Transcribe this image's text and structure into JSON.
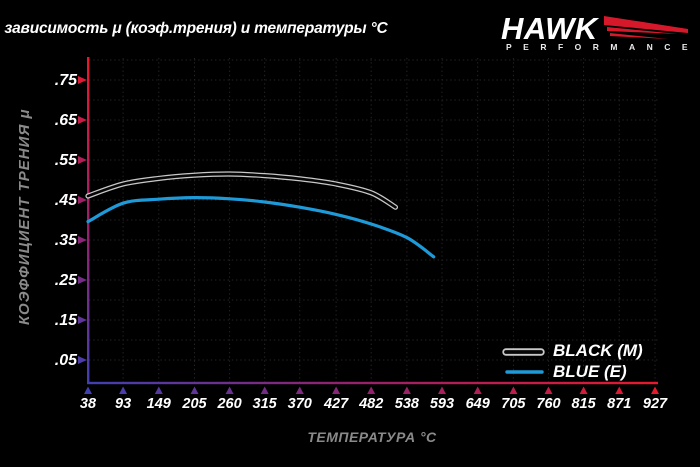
{
  "logo": {
    "brand": "HAWK",
    "sub": "PERFORMANCE"
  },
  "colors": {
    "background": "#000000",
    "title_text": "#ffffff",
    "axis_title_text": "#8a8a8a",
    "tick_text": "#ffffff",
    "grid": "#242424",
    "axis_gradient_red": "#e8192c",
    "axis_gradient_purple": "#93226e",
    "axis_gradient_blue": "#4040b2",
    "hawk_red": "#d6182b",
    "series_blue": "#1e9ad8",
    "series_black_outline": "#c8c8c8"
  },
  "chart_data": {
    "type": "line",
    "title": "зависимость μ (коэф.трения) и температуры °C",
    "xlabel": "ТЕМПЕРАТУРА °C",
    "ylabel": "КОЭФФИЦИЕНТ ТРЕНИЯ μ",
    "xlim": [
      38,
      927
    ],
    "ylim": [
      0,
      0.8
    ],
    "grid": "dotted",
    "x_ticks": [
      38,
      93,
      149,
      205,
      260,
      315,
      370,
      427,
      482,
      538,
      593,
      649,
      705,
      760,
      815,
      871,
      927
    ],
    "y_ticks": [
      {
        "label": ".75",
        "value": 0.75
      },
      {
        "label": ".65",
        "value": 0.65
      },
      {
        "label": ".55",
        "value": 0.55
      },
      {
        "label": ".45",
        "value": 0.45
      },
      {
        "label": ".35",
        "value": 0.35
      },
      {
        "label": ".25",
        "value": 0.25
      },
      {
        "label": ".15",
        "value": 0.15
      },
      {
        "label": ".05",
        "value": 0.05
      }
    ],
    "legend": {
      "position": "inside-bottom-right",
      "items": [
        "BLACK (M)",
        "BLUE (E)"
      ]
    },
    "series": [
      {
        "name": "BLACK (M)",
        "line_style": "double-outline",
        "color": "#c8c8c8",
        "points": [
          [
            38,
            0.46
          ],
          [
            93,
            0.49
          ],
          [
            149,
            0.504
          ],
          [
            205,
            0.512
          ],
          [
            260,
            0.515
          ],
          [
            315,
            0.511
          ],
          [
            370,
            0.503
          ],
          [
            427,
            0.49
          ],
          [
            482,
            0.468
          ],
          [
            520,
            0.432
          ]
        ]
      },
      {
        "name": "BLUE (E)",
        "line_style": "solid",
        "color": "#1e9ad8",
        "points": [
          [
            38,
            0.396
          ],
          [
            93,
            0.442
          ],
          [
            149,
            0.452
          ],
          [
            205,
            0.456
          ],
          [
            260,
            0.453
          ],
          [
            315,
            0.445
          ],
          [
            370,
            0.432
          ],
          [
            427,
            0.414
          ],
          [
            482,
            0.39
          ],
          [
            538,
            0.356
          ],
          [
            580,
            0.308
          ]
        ]
      }
    ]
  }
}
